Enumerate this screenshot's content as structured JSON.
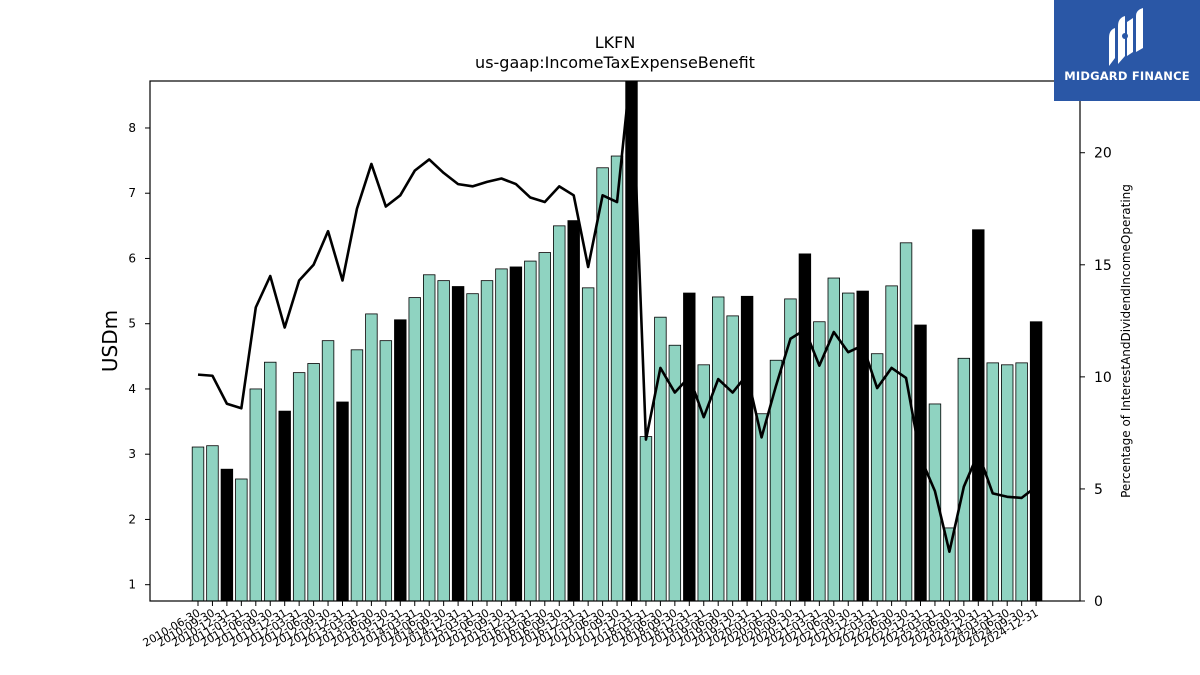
{
  "chart_data": {
    "type": "bar",
    "title": "LKFN",
    "subtitle": "us-gaap:IncomeTaxExpenseBenefit",
    "ylabel": "USDm",
    "y2label": "Percentage of InterestAndDividendIncomeOperating",
    "ylim": [
      0.75,
      8.72
    ],
    "y2lim": [
      0,
      23.2
    ],
    "yticks": [
      1,
      2,
      3,
      4,
      5,
      6,
      7,
      8
    ],
    "y2ticks": [
      0,
      5,
      10,
      15,
      20
    ],
    "colors": {
      "quarter_bar": "#8fd3c1",
      "annual_bar": "#000000",
      "line": "#000000"
    },
    "categories": [
      "2010-06-30",
      "2010-09-30",
      "2010-12-31",
      "2011-03-31",
      "2011-06-30",
      "2011-09-30",
      "2011-12-31",
      "2012-03-31",
      "2012-06-30",
      "2012-09-30",
      "2012-12-31",
      "2013-03-31",
      "2013-06-30",
      "2013-09-30",
      "2013-12-31",
      "2014-03-31",
      "2014-06-30",
      "2014-09-30",
      "2014-12-31",
      "2015-03-31",
      "2015-06-30",
      "2015-09-30",
      "2015-12-31",
      "2016-03-31",
      "2016-06-30",
      "2016-09-30",
      "2016-12-31",
      "2017-03-31",
      "2017-06-30",
      "2017-09-30",
      "2017-12-31",
      "2018-03-31",
      "2018-06-30",
      "2018-09-30",
      "2018-12-31",
      "2019-03-31",
      "2019-06-30",
      "2019-09-30",
      "2019-12-31",
      "2020-03-31",
      "2020-06-30",
      "2020-09-30",
      "2020-12-31",
      "2021-03-31",
      "2021-06-30",
      "2021-09-30",
      "2021-12-31",
      "2022-03-31",
      "2022-06-30",
      "2022-09-30",
      "2022-12-31",
      "2023-03-31",
      "2023-06-30",
      "2023-09-30",
      "2023-12-31",
      "2024-03-31",
      "2024-06-30",
      "2024-09-30",
      "2024-12-31"
    ],
    "values": [
      3.11,
      3.13,
      2.77,
      2.62,
      4.0,
      4.41,
      3.66,
      4.25,
      4.39,
      4.74,
      3.8,
      4.6,
      5.15,
      4.74,
      5.06,
      5.4,
      5.75,
      5.66,
      5.57,
      5.46,
      5.66,
      5.84,
      5.87,
      5.96,
      6.09,
      6.5,
      6.58,
      5.55,
      7.39,
      7.57,
      8.72,
      3.27,
      5.1,
      4.67,
      5.47,
      4.37,
      5.41,
      5.12,
      5.42,
      3.62,
      4.44,
      5.38,
      6.07,
      5.03,
      5.7,
      5.47,
      5.5,
      4.54,
      5.58,
      6.24,
      4.98,
      3.77,
      1.87,
      4.47,
      6.44,
      4.4,
      4.37,
      4.4,
      5.03
    ],
    "annual": [
      false,
      false,
      true,
      false,
      false,
      false,
      true,
      false,
      false,
      false,
      true,
      false,
      false,
      false,
      true,
      false,
      false,
      false,
      true,
      false,
      false,
      false,
      true,
      false,
      false,
      false,
      true,
      false,
      false,
      false,
      true,
      false,
      false,
      false,
      true,
      false,
      false,
      false,
      true,
      false,
      false,
      false,
      true,
      false,
      false,
      false,
      true,
      false,
      false,
      false,
      true,
      false,
      false,
      false,
      true,
      false,
      false,
      false,
      true
    ],
    "line_series": [
      10.1,
      10.05,
      8.8,
      8.6,
      13.1,
      14.5,
      12.2,
      14.3,
      15.0,
      16.5,
      14.3,
      17.5,
      19.5,
      17.6,
      18.1,
      19.2,
      19.7,
      19.1,
      18.6,
      18.5,
      18.7,
      18.85,
      18.6,
      18.0,
      17.8,
      18.5,
      18.1,
      14.9,
      18.1,
      17.8,
      24.0,
      7.2,
      10.4,
      9.3,
      10.0,
      8.2,
      9.9,
      9.3,
      10.1,
      7.3,
      9.6,
      11.7,
      12.1,
      10.5,
      12.0,
      11.1,
      11.4,
      9.5,
      10.4,
      9.95,
      6.4,
      4.9,
      2.2,
      5.1,
      6.6,
      4.8,
      4.65,
      4.6,
      5.1
    ]
  },
  "logo": {
    "text": "MIDGARD FINANCE"
  }
}
